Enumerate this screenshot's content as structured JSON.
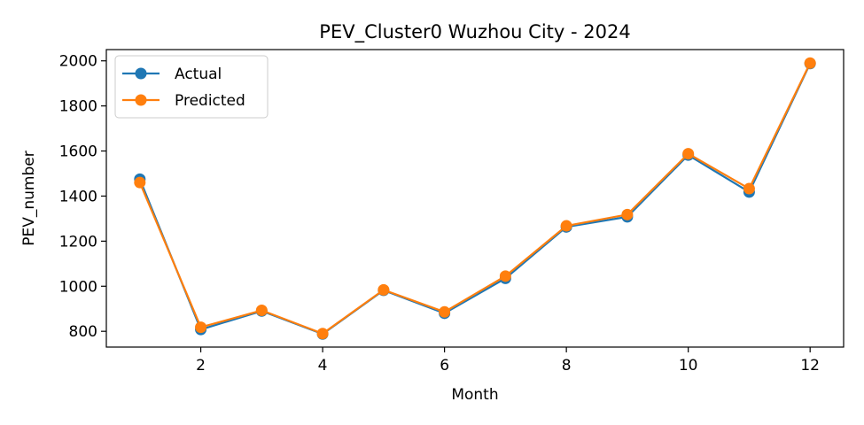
{
  "chart_data": {
    "type": "line",
    "title": "PEV_Cluster0 Wuzhou City - 2024",
    "xlabel": "Month",
    "ylabel": "PEV_number",
    "x": [
      1,
      2,
      3,
      4,
      5,
      6,
      7,
      8,
      9,
      10,
      11,
      12
    ],
    "xlim": [
      0.45,
      12.55
    ],
    "ylim": [
      730,
      2050
    ],
    "xticks": [
      2,
      4,
      6,
      8,
      10,
      12
    ],
    "yticks": [
      800,
      1000,
      1200,
      1400,
      1600,
      1800,
      2000
    ],
    "grid": false,
    "legend_position": "top-left",
    "series": [
      {
        "name": "Actual",
        "color": "#1f77b4",
        "marker": "circle",
        "values": [
          1475,
          808,
          890,
          788,
          982,
          880,
          1035,
          1263,
          1308,
          1582,
          1418,
          1988
        ]
      },
      {
        "name": "Predicted",
        "color": "#ff7f0e",
        "marker": "circle",
        "values": [
          1460,
          818,
          893,
          790,
          984,
          886,
          1045,
          1268,
          1318,
          1588,
          1433,
          1990
        ]
      }
    ]
  }
}
